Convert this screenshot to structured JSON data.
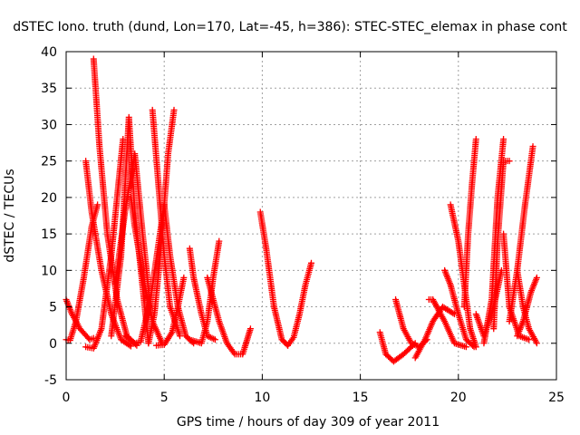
{
  "chart_data": {
    "type": "scatter",
    "title": "dSTEC Iono. truth (dund, Lon=170, Lat=-45, h=386): STEC-STEC_elemax in phase cont",
    "xlabel": "GPS time / hours of day 309 of year 2011",
    "ylabel": "dSTEC  / TECUs",
    "xlim": [
      0,
      25
    ],
    "ylim": [
      -5,
      40
    ],
    "xticks": [
      0,
      5,
      10,
      15,
      20,
      25
    ],
    "yticks": [
      -5,
      0,
      5,
      10,
      15,
      20,
      25,
      30,
      35,
      40
    ],
    "grid": true,
    "legend": "none",
    "marker": "plus",
    "color": "#ff0000",
    "series": [
      {
        "x": [
          0.0,
          0.3,
          0.7,
          1.2,
          1.4
        ],
        "y": [
          6,
          4,
          2,
          0.5,
          0.7
        ]
      },
      {
        "x": [
          0.0,
          0.2,
          0.5,
          0.9,
          1.3,
          1.6
        ],
        "y": [
          0.5,
          0.4,
          3,
          9,
          16,
          19
        ]
      },
      {
        "x": [
          1.0,
          1.3,
          1.8,
          2.3,
          2.8,
          3.3
        ],
        "y": [
          25,
          18,
          10,
          4,
          0.5,
          -0.4
        ]
      },
      {
        "x": [
          1.0,
          1.4,
          1.8,
          2.3,
          2.9
        ],
        "y": [
          -0.5,
          -0.7,
          2,
          12,
          28
        ]
      },
      {
        "x": [
          1.4,
          1.7,
          2.1,
          2.6,
          3.1,
          3.6
        ],
        "y": [
          39,
          27,
          15,
          6,
          1,
          -0.3
        ]
      },
      {
        "x": [
          2.3,
          2.8,
          3.2,
          3.5,
          4.2
        ],
        "y": [
          1,
          12,
          31,
          18,
          0
        ]
      },
      {
        "x": [
          2.5,
          3.0,
          3.5,
          3.9,
          4.3
        ],
        "y": [
          8,
          18,
          26,
          15,
          5
        ]
      },
      {
        "x": [
          3.0,
          3.5,
          3.8,
          4.3,
          5.0
        ],
        "y": [
          1,
          0,
          0.2,
          6,
          19
        ]
      },
      {
        "x": [
          3.3,
          3.5,
          4.0,
          4.4,
          4.9
        ],
        "y": [
          20,
          16,
          8,
          3,
          0
        ]
      },
      {
        "x": [
          4.2,
          4.5,
          4.8,
          5.2,
          5.5
        ],
        "y": [
          0,
          4,
          12,
          26,
          32
        ]
      },
      {
        "x": [
          4.4,
          4.7,
          5.0,
          5.3,
          5.8
        ],
        "y": [
          32,
          22,
          12,
          5,
          1
        ]
      },
      {
        "x": [
          4.6,
          5.0,
          5.4,
          5.7,
          6.0
        ],
        "y": [
          -0.3,
          -0.2,
          1.5,
          5,
          9
        ]
      },
      {
        "x": [
          5.0,
          5.3,
          5.7,
          6.1,
          6.5
        ],
        "y": [
          19,
          12,
          5,
          1,
          0
        ]
      },
      {
        "x": [
          6.3,
          6.9,
          7.2,
          7.5,
          7.8
        ],
        "y": [
          0.5,
          0,
          3,
          9,
          14
        ]
      },
      {
        "x": [
          6.3,
          6.5,
          6.9,
          7.2,
          7.6
        ],
        "y": [
          13,
          9,
          4,
          1,
          0.5
        ]
      },
      {
        "x": [
          7.2,
          7.8,
          8.2,
          8.6,
          9.0,
          9.4
        ],
        "y": [
          9,
          3,
          0,
          -1.5,
          -1.5,
          2
        ]
      },
      {
        "x": [
          9.9,
          10.2,
          10.6,
          11.0,
          11.3
        ],
        "y": [
          18,
          13,
          5,
          0.5,
          -0.3
        ]
      },
      {
        "x": [
          11.3,
          11.6,
          11.9,
          12.2,
          12.5
        ],
        "y": [
          -0.3,
          0.8,
          4,
          8,
          11
        ]
      },
      {
        "x": [
          16.0,
          16.3,
          16.7,
          17.2,
          17.8
        ],
        "y": [
          1.5,
          -1.5,
          -2.5,
          -1.5,
          0
        ]
      },
      {
        "x": [
          16.8,
          17.2,
          17.6,
          18.0,
          18.4
        ],
        "y": [
          6,
          2,
          0,
          -0.5,
          0.5
        ]
      },
      {
        "x": [
          17.8,
          18.3,
          18.7,
          19.2,
          19.8
        ],
        "y": [
          -2,
          0.5,
          3,
          5,
          4
        ]
      },
      {
        "x": [
          18.5,
          18.7,
          19.3,
          19.8,
          20.4
        ],
        "y": [
          6,
          6,
          3,
          0,
          -0.5
        ]
      },
      {
        "x": [
          19.3,
          19.6,
          20.0,
          20.4,
          20.8
        ],
        "y": [
          10,
          8,
          4,
          0.5,
          -0.5
        ]
      },
      {
        "x": [
          19.6,
          20.0,
          20.3,
          20.6,
          20.9
        ],
        "y": [
          19,
          14,
          8,
          2,
          -0.5
        ]
      },
      {
        "x": [
          20.3,
          20.5,
          20.7,
          20.9
        ],
        "y": [
          5,
          15,
          22,
          28
        ]
      },
      {
        "x": [
          20.9,
          21.3,
          21.8,
          22.2
        ],
        "y": [
          4,
          1,
          5,
          10
        ]
      },
      {
        "x": [
          21.3,
          21.7,
          22.0,
          22.3
        ],
        "y": [
          0,
          6,
          20,
          28
        ]
      },
      {
        "x": [
          21.8,
          22.0,
          22.3,
          22.6
        ],
        "y": [
          2,
          14,
          25,
          25
        ]
      },
      {
        "x": [
          22.3,
          22.6,
          23.1,
          23.6
        ],
        "y": [
          15,
          5,
          1,
          0.5
        ]
      },
      {
        "x": [
          22.6,
          23.0,
          23.4,
          23.8
        ],
        "y": [
          3,
          10,
          19,
          27
        ]
      },
      {
        "x": [
          23.0,
          23.3,
          23.7,
          24.0
        ],
        "y": [
          1,
          3,
          7,
          9
        ]
      },
      {
        "x": [
          23.0,
          23.3,
          23.6,
          24.0
        ],
        "y": [
          10,
          5,
          2,
          0
        ]
      }
    ]
  }
}
